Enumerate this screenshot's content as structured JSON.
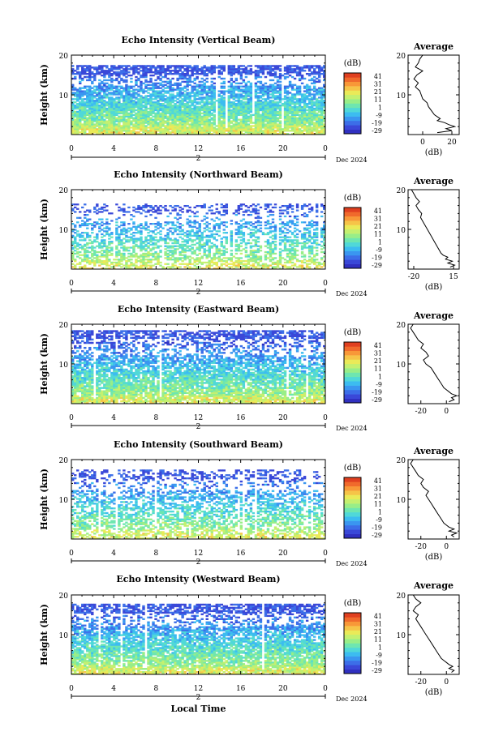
{
  "colors": {
    "colormap": [
      "#3030c0",
      "#3a48d8",
      "#3c6ee8",
      "#3a96f0",
      "#3cbcf0",
      "#50d8d8",
      "#6ee6b0",
      "#98ee88",
      "#c4f070",
      "#eaea58",
      "#f6c448",
      "#f89838",
      "#f06a2c",
      "#e04020"
    ]
  },
  "chart_data": [
    {
      "type": "heatmap",
      "title": "Echo Intensity (Vertical Beam)",
      "ylabel": "Height (km)",
      "xlabel": "",
      "ylim": [
        0,
        20
      ],
      "xlim": [
        0,
        24
      ],
      "x_ticks": [
        "0",
        "4",
        "8",
        "12",
        "16",
        "20",
        "0"
      ],
      "y_ticks": [
        "20",
        "10"
      ],
      "date_label": "Dec 2024",
      "date_marker": "2",
      "colorbar": {
        "unit": "(dB)",
        "ticks": [
          "41",
          "31",
          "21",
          "11",
          "1",
          "-9",
          "-19",
          "-29"
        ],
        "range": [
          -29,
          41
        ]
      },
      "profile": {
        "title": "Average",
        "xlabel": "(dB)",
        "x_ticks": [
          "0",
          "20"
        ],
        "xlim": [
          -10,
          25
        ],
        "y_ticks": [
          "20",
          "10"
        ],
        "height_km": [
          0.5,
          1,
          1.5,
          2,
          2.5,
          3,
          3.5,
          4,
          5,
          6,
          7,
          8,
          9,
          10,
          11,
          12,
          13,
          14,
          15,
          16,
          17,
          18,
          19,
          20
        ],
        "db": [
          10,
          20,
          16,
          22,
          18,
          15,
          10,
          12,
          8,
          6,
          4,
          3,
          0,
          -1,
          -2,
          -5,
          -3,
          -6,
          -4,
          0,
          -5,
          -3,
          -2,
          0
        ]
      }
    },
    {
      "type": "heatmap",
      "title": "Echo Intensity (Northward Beam)",
      "ylabel": "Height (km)",
      "xlabel": "",
      "ylim": [
        0,
        20
      ],
      "xlim": [
        0,
        24
      ],
      "x_ticks": [
        "0",
        "4",
        "8",
        "12",
        "16",
        "20",
        "0"
      ],
      "y_ticks": [
        "20",
        "10"
      ],
      "date_label": "Dec 2024",
      "date_marker": "2",
      "colorbar": {
        "unit": "(dB)",
        "ticks": [
          "41",
          "31",
          "21",
          "11",
          "1",
          "-9",
          "-19",
          "-29"
        ],
        "range": [
          -29,
          41
        ]
      },
      "profile": {
        "title": "Average",
        "xlabel": "(dB)",
        "x_ticks": [
          "-20",
          "15"
        ],
        "xlim": [
          -25,
          20
        ],
        "y_ticks": [
          "20",
          "10"
        ],
        "height_km": [
          0.5,
          1,
          1.5,
          2,
          2.5,
          3,
          3.5,
          4,
          5,
          6,
          7,
          8,
          9,
          10,
          11,
          12,
          13,
          14,
          15,
          16,
          17,
          18,
          19,
          20
        ],
        "db": [
          12,
          16,
          10,
          14,
          8,
          10,
          6,
          4,
          2,
          0,
          -2,
          -4,
          -6,
          -8,
          -10,
          -12,
          -14,
          -13,
          -16,
          -18,
          -15,
          -18,
          -20,
          -22
        ]
      }
    },
    {
      "type": "heatmap",
      "title": "Echo Intensity (Eastward Beam)",
      "ylabel": "Height (km)",
      "xlabel": "",
      "ylim": [
        0,
        20
      ],
      "xlim": [
        0,
        24
      ],
      "x_ticks": [
        "0",
        "4",
        "8",
        "12",
        "16",
        "20",
        "0"
      ],
      "y_ticks": [
        "20",
        "10"
      ],
      "date_label": "Dec 2024",
      "date_marker": "2",
      "colorbar": {
        "unit": "(dB)",
        "ticks": [
          "41",
          "31",
          "21",
          "11",
          "1",
          "-9",
          "-19",
          "-29"
        ],
        "range": [
          -29,
          41
        ]
      },
      "profile": {
        "title": "Average",
        "xlabel": "",
        "x_ticks": [
          "-20",
          "0"
        ],
        "xlim": [
          -30,
          10
        ],
        "y_ticks": [
          "20",
          "10"
        ],
        "height_km": [
          0.5,
          1,
          1.5,
          2,
          2.5,
          3,
          3.5,
          4,
          5,
          6,
          7,
          8,
          9,
          10,
          11,
          12,
          13,
          14,
          15,
          16,
          17,
          18,
          19,
          20
        ],
        "db": [
          2,
          6,
          4,
          8,
          4,
          2,
          0,
          -2,
          -4,
          -6,
          -8,
          -10,
          -12,
          -16,
          -18,
          -14,
          -16,
          -20,
          -18,
          -22,
          -24,
          -26,
          -28,
          -26
        ]
      }
    },
    {
      "type": "heatmap",
      "title": "Echo Intensity (Southward Beam)",
      "ylabel": "Height (km)",
      "xlabel": "",
      "ylim": [
        0,
        20
      ],
      "xlim": [
        0,
        24
      ],
      "x_ticks": [
        "0",
        "4",
        "8",
        "12",
        "16",
        "20",
        "0"
      ],
      "y_ticks": [
        "20",
        "10"
      ],
      "date_label": "Dec 2024",
      "date_marker": "2",
      "colorbar": {
        "unit": "(dB)",
        "ticks": [
          "41",
          "31",
          "21",
          "11",
          "1",
          "-9",
          "-19",
          "-29"
        ],
        "range": [
          -29,
          41
        ]
      },
      "profile": {
        "title": "Average",
        "xlabel": "(dB)",
        "x_ticks": [
          "-20",
          "0"
        ],
        "xlim": [
          -30,
          10
        ],
        "y_ticks": [
          "20",
          "10"
        ],
        "height_km": [
          0.5,
          1,
          1.5,
          2,
          2.5,
          3,
          3.5,
          4,
          5,
          6,
          7,
          8,
          9,
          10,
          11,
          12,
          13,
          14,
          15,
          16,
          17,
          18,
          19,
          20
        ],
        "db": [
          6,
          4,
          8,
          2,
          6,
          2,
          0,
          -2,
          -4,
          -6,
          -8,
          -10,
          -12,
          -14,
          -16,
          -14,
          -18,
          -20,
          -18,
          -22,
          -24,
          -26,
          -28,
          -26
        ]
      }
    },
    {
      "type": "heatmap",
      "title": "Echo Intensity (Westward Beam)",
      "ylabel": "Height (km)",
      "xlabel": "Local Time",
      "ylim": [
        0,
        20
      ],
      "xlim": [
        0,
        24
      ],
      "x_ticks": [
        "0",
        "4",
        "8",
        "12",
        "16",
        "20",
        "0"
      ],
      "y_ticks": [
        "20",
        "10"
      ],
      "date_label": "Dec 2024",
      "date_marker": "2",
      "colorbar": {
        "unit": "(dB)",
        "ticks": [
          "41",
          "31",
          "21",
          "11",
          "1",
          "-9",
          "-19",
          "-29"
        ],
        "range": [
          -29,
          41
        ]
      },
      "profile": {
        "title": "Average",
        "xlabel": "(dB)",
        "x_ticks": [
          "-20",
          "0"
        ],
        "xlim": [
          -30,
          10
        ],
        "y_ticks": [
          "20",
          "10"
        ],
        "height_km": [
          0.5,
          1,
          1.5,
          2,
          2.5,
          3,
          3.5,
          4,
          5,
          6,
          7,
          8,
          9,
          10,
          11,
          12,
          13,
          14,
          15,
          16,
          17,
          18,
          19,
          20
        ],
        "db": [
          4,
          6,
          2,
          5,
          2,
          0,
          -2,
          -4,
          -6,
          -8,
          -10,
          -12,
          -14,
          -16,
          -18,
          -20,
          -22,
          -24,
          -22,
          -26,
          -24,
          -20,
          -24,
          -26
        ]
      }
    }
  ]
}
